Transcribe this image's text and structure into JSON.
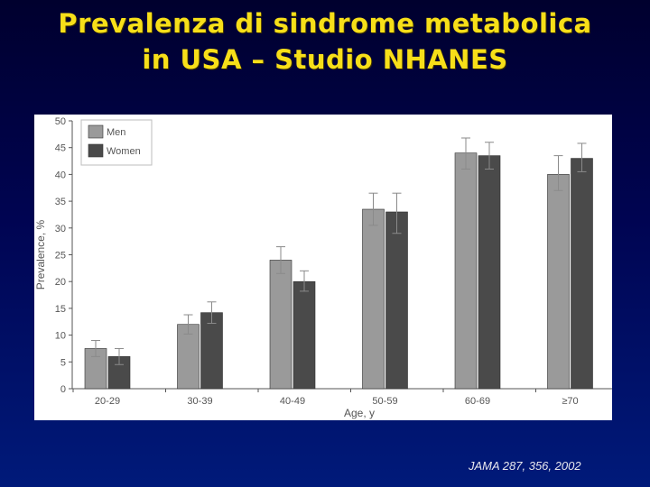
{
  "slide": {
    "title_line1": "Prevalenza di sindrome metabolica",
    "title_line2": "in USA – Studio NHANES",
    "citation": "JAMA 287, 356, 2002",
    "title_color": "#f7df19"
  },
  "chart_data": {
    "type": "bar",
    "title": "",
    "xlabel": "Age, y",
    "ylabel": "Prevalence, %",
    "categories": [
      "20-29",
      "30-39",
      "40-49",
      "50-59",
      "60-69",
      "≥70"
    ],
    "ylim": [
      0,
      50
    ],
    "yticks": [
      0,
      5,
      10,
      15,
      20,
      25,
      30,
      35,
      40,
      45,
      50
    ],
    "grid": false,
    "legend_position": "top-left",
    "series": [
      {
        "name": "Men",
        "color": "#9a9a9a",
        "values": [
          7.5,
          12,
          24,
          33.5,
          44,
          40
        ],
        "err_low": [
          6,
          10.2,
          21.5,
          30.5,
          41,
          37
        ],
        "err_high": [
          9,
          13.8,
          26.5,
          36.5,
          46.8,
          43.5
        ]
      },
      {
        "name": "Women",
        "color": "#4a4a4a",
        "values": [
          6,
          14.2,
          20,
          33,
          43.5,
          43
        ],
        "err_low": [
          4.5,
          12.2,
          18.2,
          29,
          41,
          40.5
        ],
        "err_high": [
          7.5,
          16.2,
          22,
          36.5,
          46,
          45.8
        ]
      }
    ]
  }
}
